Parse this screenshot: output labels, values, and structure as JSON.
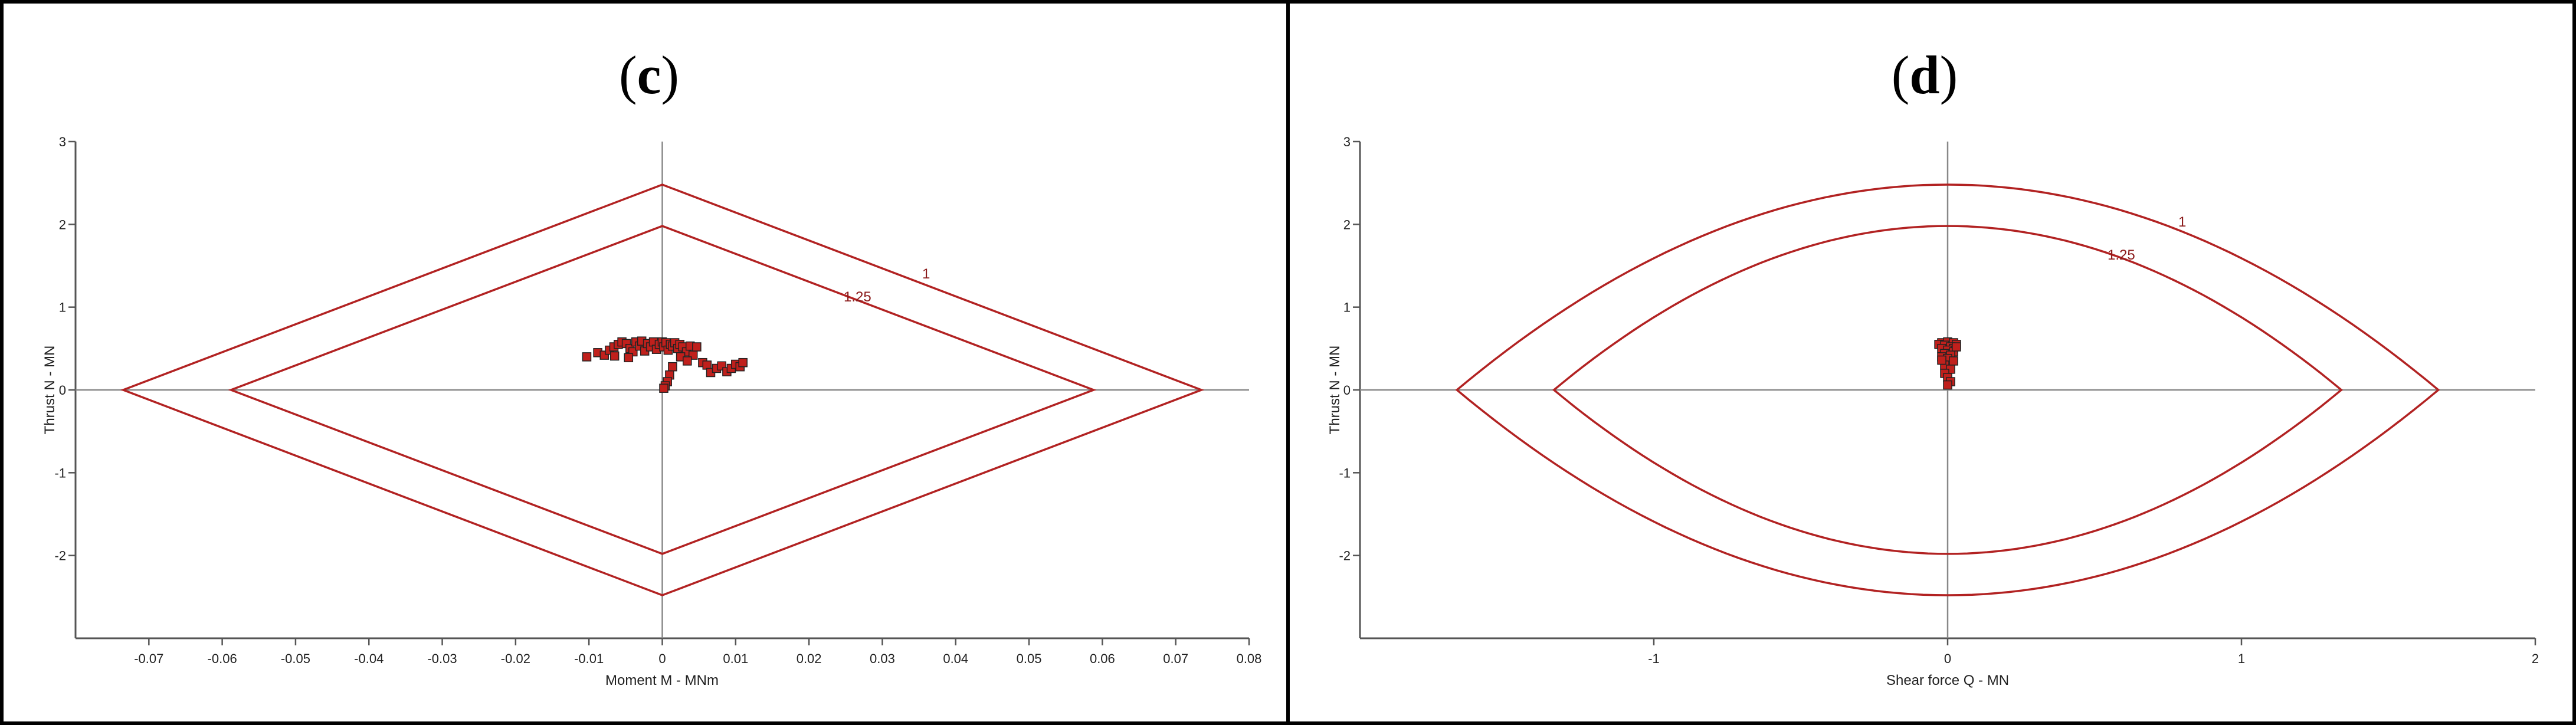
{
  "panels": [
    {
      "tag": "c",
      "xlabel": "Moment M - MNm",
      "ylabel": "Thrust N - MN",
      "xticks": [
        -0.07,
        -0.06,
        -0.05,
        -0.04,
        -0.03,
        -0.02,
        -0.01,
        0,
        0.01,
        0.02,
        0.03,
        0.04,
        0.05,
        0.06,
        0.07,
        0.08
      ],
      "xtick_labels": [
        "-0.07",
        "-0.06",
        "-0.05",
        "-0.04",
        "-0.03",
        "-0.02",
        "-0.01",
        "0",
        "0.01",
        "0.02",
        "0.03",
        "0.04",
        "0.05",
        "0.06",
        "0.07",
        "0.08"
      ],
      "yticks": [
        -2,
        -1,
        0,
        1,
        2,
        3
      ],
      "ytick_labels": [
        "-2",
        "-1",
        "0",
        "1",
        "2",
        "3"
      ]
    },
    {
      "tag": "d",
      "xlabel": "Shear force Q - MN",
      "ylabel": "Thrust N - MN",
      "xticks": [
        -1,
        0,
        1,
        2
      ],
      "xtick_labels": [
        "-1",
        "0",
        "1",
        "2"
      ],
      "yticks": [
        -2,
        -1,
        0,
        1,
        2,
        3
      ],
      "ytick_labels": [
        "-2",
        "-1",
        "0",
        "1",
        "2",
        "3"
      ]
    }
  ],
  "chart_data": [
    {
      "type": "scatter",
      "title": "(c)",
      "xlabel": "Moment M - MNm",
      "ylabel": "Thrust N - MN",
      "xlim": [
        -0.08,
        0.08
      ],
      "ylim": [
        -3,
        3
      ],
      "grid": false,
      "boundaries": [
        {
          "label": "1",
          "shape": "diamond",
          "vertices": [
            [
              -0.0735,
              0
            ],
            [
              0,
              2.48
            ],
            [
              0.0735,
              0
            ],
            [
              0,
              -2.48
            ]
          ]
        },
        {
          "label": "1.25",
          "shape": "diamond",
          "vertices": [
            [
              -0.0588,
              0
            ],
            [
              0,
              1.98
            ],
            [
              0.0588,
              0
            ],
            [
              0,
              -1.98
            ]
          ]
        }
      ],
      "series": [
        {
          "points": [
            [
              -0.0103,
              0.4
            ],
            [
              -0.0088,
              0.45
            ],
            [
              -0.0079,
              0.42
            ],
            [
              -0.0072,
              0.48
            ],
            [
              -0.0066,
              0.52
            ],
            [
              -0.006,
              0.55
            ],
            [
              -0.0055,
              0.58
            ],
            [
              -0.0049,
              0.56
            ],
            [
              -0.0044,
              0.5
            ],
            [
              -0.004,
              0.46
            ],
            [
              -0.0036,
              0.58
            ],
            [
              -0.0031,
              0.53
            ],
            [
              -0.0028,
              0.59
            ],
            [
              -0.0024,
              0.47
            ],
            [
              -0.002,
              0.56
            ],
            [
              -0.0016,
              0.52
            ],
            [
              -0.0012,
              0.58
            ],
            [
              -0.0008,
              0.49
            ],
            [
              -0.0004,
              0.55
            ],
            [
              0.0,
              0.58
            ],
            [
              0.0002,
              0.52
            ],
            [
              0.0005,
              0.57
            ],
            [
              0.0008,
              0.48
            ],
            [
              0.0011,
              0.55
            ],
            [
              0.0014,
              0.53
            ],
            [
              0.0017,
              0.57
            ],
            [
              0.0021,
              0.5
            ],
            [
              0.0024,
              0.55
            ],
            [
              0.0028,
              0.52
            ],
            [
              0.0033,
              0.46
            ],
            [
              0.0038,
              0.53
            ],
            [
              0.0042,
              0.42
            ],
            [
              0.0047,
              0.52
            ],
            [
              0.0055,
              0.33
            ],
            [
              0.0061,
              0.3
            ],
            [
              0.0066,
              0.21
            ],
            [
              0.0074,
              0.26
            ],
            [
              0.0081,
              0.29
            ],
            [
              0.0088,
              0.22
            ],
            [
              0.0094,
              0.26
            ],
            [
              0.01,
              0.31
            ],
            [
              0.0106,
              0.28
            ],
            [
              0.011,
              0.33
            ],
            [
              0.0014,
              0.28
            ],
            [
              0.001,
              0.18
            ],
            [
              0.0007,
              0.1
            ],
            [
              0.0004,
              0.05
            ],
            [
              0.0002,
              0.02
            ],
            [
              -0.0046,
              0.39
            ],
            [
              0.0025,
              0.4
            ],
            [
              -0.0065,
              0.41
            ],
            [
              0.0034,
              0.35
            ]
          ]
        }
      ],
      "annotations": [
        "1",
        "1.25"
      ]
    },
    {
      "type": "scatter",
      "title": "(d)",
      "xlabel": "Shear force Q - MN",
      "ylabel": "Thrust N - MN",
      "xlim": [
        -2,
        2
      ],
      "ylim": [
        -3,
        3
      ],
      "grid": false,
      "boundaries": [
        {
          "label": "1",
          "shape": "lens",
          "half_width": 1.67,
          "half_height": 2.48
        },
        {
          "label": "1.25",
          "shape": "lens",
          "half_width": 1.34,
          "half_height": 1.98
        }
      ],
      "series": [
        {
          "points": [
            [
              -0.02,
              0.57
            ],
            [
              0.0,
              0.58
            ],
            [
              0.02,
              0.57
            ],
            [
              0.03,
              0.55
            ],
            [
              -0.03,
              0.55
            ],
            [
              -0.01,
              0.54
            ],
            [
              0.01,
              0.52
            ],
            [
              0.02,
              0.5
            ],
            [
              -0.02,
              0.5
            ],
            [
              0.0,
              0.48
            ],
            [
              0.02,
              0.46
            ],
            [
              -0.01,
              0.44
            ],
            [
              0.01,
              0.42
            ],
            [
              -0.02,
              0.4
            ],
            [
              0.0,
              0.38
            ],
            [
              0.02,
              0.35
            ],
            [
              -0.01,
              0.3
            ],
            [
              0.01,
              0.25
            ],
            [
              -0.01,
              0.2
            ],
            [
              0.0,
              0.15
            ],
            [
              0.01,
              0.1
            ],
            [
              0.0,
              0.06
            ],
            [
              -0.02,
              0.36
            ],
            [
              0.03,
              0.52
            ]
          ]
        }
      ],
      "annotations": [
        "1",
        "1.25"
      ]
    }
  ]
}
